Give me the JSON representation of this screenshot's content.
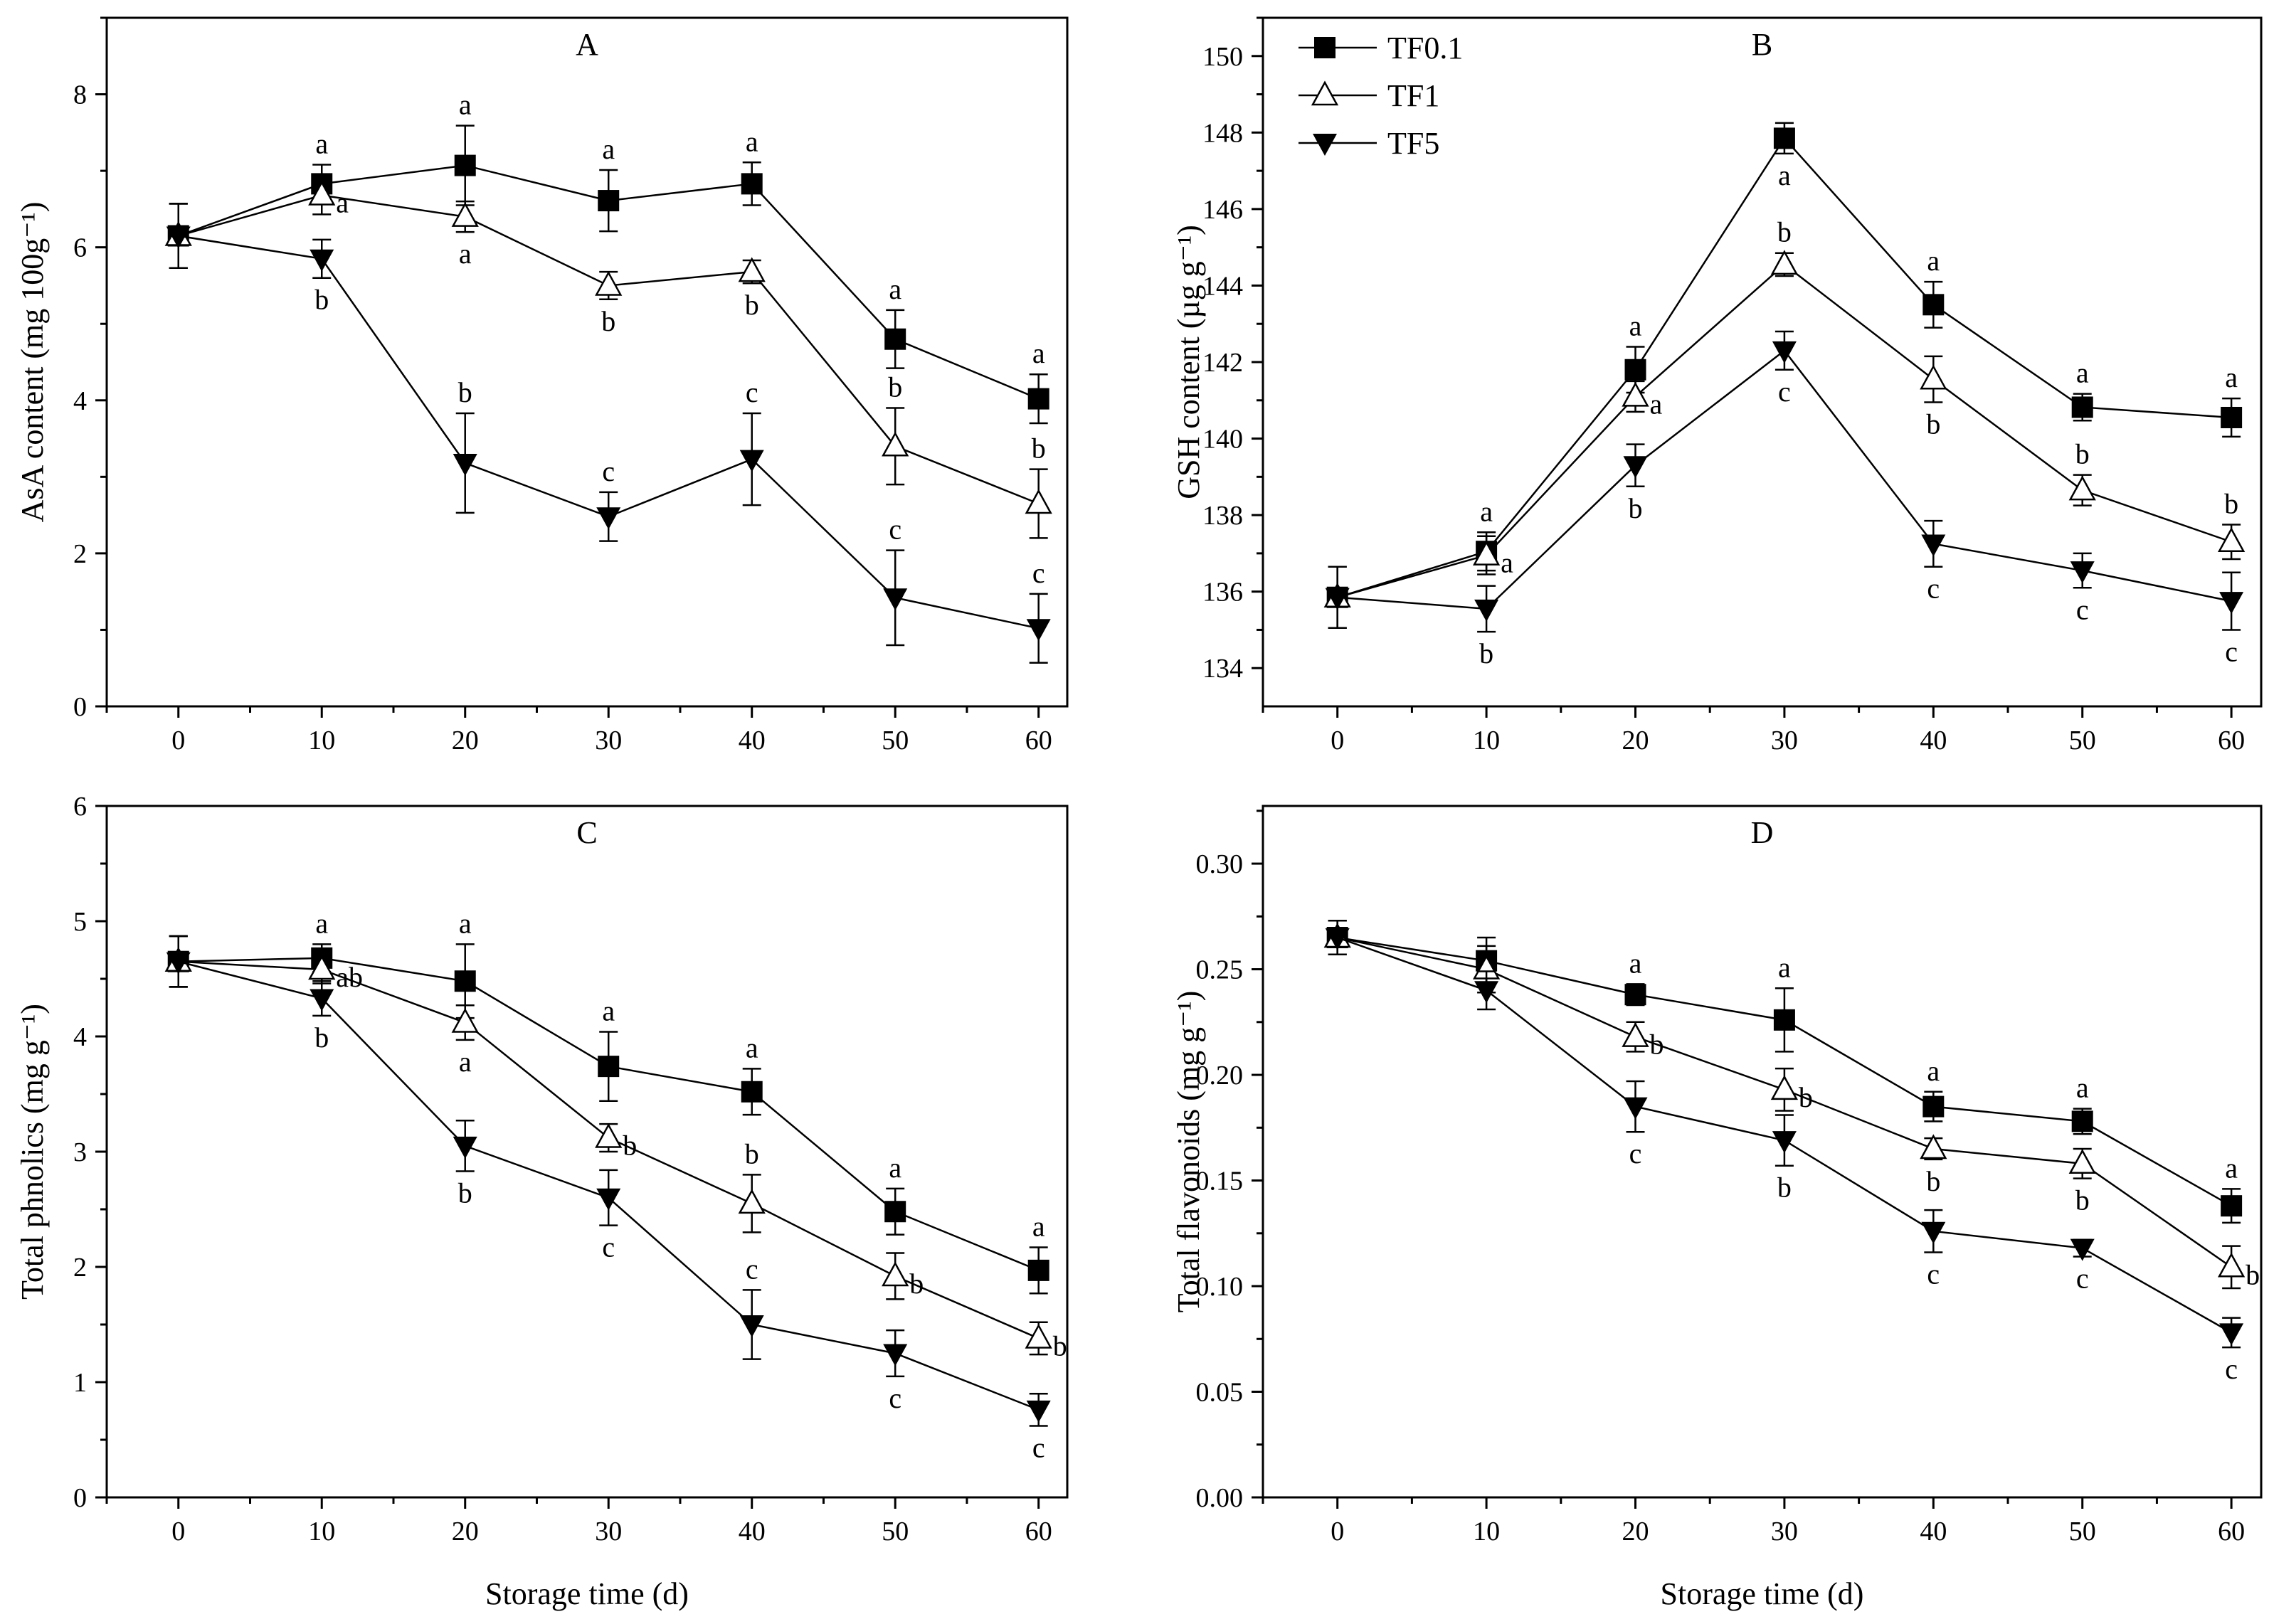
{
  "legend": [
    {
      "name": "TF0.1",
      "marker": "square"
    },
    {
      "name": "TF1",
      "marker": "triangle-up-open"
    },
    {
      "name": "TF5",
      "marker": "triangle-down"
    }
  ],
  "shared_xlabel": "Storage time (d)",
  "chart_data": [
    {
      "type": "line",
      "panel": "A",
      "title": "A",
      "xlabel": "",
      "ylabel": "AsA content (mg 100g⁻¹)",
      "x": [
        0,
        10,
        20,
        30,
        40,
        50,
        60
      ],
      "xlim": [
        -5,
        62
      ],
      "ylim": [
        0,
        9
      ],
      "xticks": [
        0,
        10,
        20,
        30,
        40,
        50,
        60
      ],
      "yticks": [
        0,
        2,
        4,
        6,
        8
      ],
      "ytick_labels": [
        "0",
        "2",
        "4",
        "6",
        "8"
      ],
      "series": [
        {
          "name": "TF0.1",
          "values": [
            6.15,
            6.83,
            7.07,
            6.61,
            6.83,
            4.8,
            4.02
          ],
          "errors": [
            0.42,
            0.25,
            0.52,
            0.4,
            0.28,
            0.38,
            0.32
          ],
          "labels": [
            "",
            "a",
            "a",
            "a",
            "a",
            "a",
            "a"
          ],
          "label_pos": [
            "above",
            "above",
            "above",
            "above",
            "above",
            "above",
            "above"
          ]
        },
        {
          "name": "TF1",
          "values": [
            6.15,
            6.68,
            6.4,
            5.5,
            5.68,
            3.4,
            2.65
          ],
          "errors": [
            0.42,
            0.25,
            0.2,
            0.18,
            0.15,
            0.5,
            0.45
          ],
          "labels": [
            "",
            "a",
            "a",
            "b",
            "b",
            "b",
            "b"
          ],
          "label_pos": [
            "below",
            "right",
            "below",
            "below",
            "below",
            "above",
            "above"
          ]
        },
        {
          "name": "TF5",
          "values": [
            6.15,
            5.85,
            3.18,
            2.48,
            3.23,
            1.42,
            1.02
          ],
          "errors": [
            0.42,
            0.25,
            0.65,
            0.32,
            0.6,
            0.62,
            0.45
          ],
          "labels": [
            "",
            "b",
            "b",
            "c",
            "c",
            "c",
            "c"
          ],
          "label_pos": [
            "below",
            "below",
            "above",
            "above",
            "above",
            "above",
            "above"
          ]
        }
      ]
    },
    {
      "type": "line",
      "panel": "B",
      "title": "B",
      "xlabel": "",
      "ylabel": "GSH content (µg g⁻¹)",
      "x": [
        0,
        10,
        20,
        30,
        40,
        50,
        60
      ],
      "xlim": [
        -5,
        62
      ],
      "ylim": [
        133,
        151
      ],
      "xticks": [
        0,
        10,
        20,
        30,
        40,
        50,
        60
      ],
      "yticks": [
        134,
        136,
        138,
        140,
        142,
        144,
        146,
        148,
        150
      ],
      "ytick_labels": [
        "134",
        "136",
        "138",
        "140",
        "142",
        "144",
        "146",
        "148",
        "150"
      ],
      "series": [
        {
          "name": "TF0.1",
          "values": [
            135.85,
            137.05,
            141.8,
            147.85,
            143.5,
            140.82,
            140.55
          ],
          "errors": [
            0.8,
            0.5,
            0.6,
            0.4,
            0.6,
            0.35,
            0.5
          ],
          "labels": [
            "",
            "a",
            "a",
            "a",
            "a",
            "a",
            "a"
          ],
          "label_pos": [
            "above",
            "above",
            "above",
            "below",
            "above",
            "above",
            "above"
          ]
        },
        {
          "name": "TF1",
          "values": [
            135.85,
            136.95,
            141.1,
            144.55,
            141.55,
            138.65,
            137.3
          ],
          "errors": [
            0.8,
            0.5,
            0.4,
            0.3,
            0.6,
            0.4,
            0.45
          ],
          "labels": [
            "",
            "a",
            "a",
            "b",
            "b",
            "b",
            "b"
          ],
          "label_pos": [
            "above",
            "right",
            "right",
            "above",
            "below",
            "above",
            "above"
          ]
        },
        {
          "name": "TF5",
          "values": [
            135.85,
            135.55,
            139.3,
            142.3,
            137.25,
            136.55,
            135.75
          ],
          "errors": [
            0.8,
            0.6,
            0.55,
            0.5,
            0.6,
            0.45,
            0.75
          ],
          "labels": [
            "",
            "b",
            "b",
            "c",
            "c",
            "c",
            "c"
          ],
          "label_pos": [
            "below",
            "below",
            "below",
            "below",
            "below",
            "below",
            "below"
          ]
        }
      ]
    },
    {
      "type": "line",
      "panel": "C",
      "title": "C",
      "xlabel": "Storage time (d)",
      "ylabel": "Total phnolics (mg g⁻¹)",
      "x": [
        0,
        10,
        20,
        30,
        40,
        50,
        60
      ],
      "xlim": [
        -5,
        62
      ],
      "ylim": [
        0,
        6
      ],
      "xticks": [
        0,
        10,
        20,
        30,
        40,
        50,
        60
      ],
      "yticks": [
        0,
        1,
        2,
        3,
        4,
        5,
        6
      ],
      "ytick_labels": [
        "0",
        "1",
        "2",
        "3",
        "4",
        "5",
        "6"
      ],
      "series": [
        {
          "name": "TF0.1",
          "values": [
            4.65,
            4.68,
            4.48,
            3.74,
            3.52,
            2.48,
            1.97
          ],
          "errors": [
            0.22,
            0.12,
            0.32,
            0.3,
            0.2,
            0.2,
            0.2
          ],
          "labels": [
            "",
            "a",
            "a",
            "a",
            "a",
            "a",
            "a"
          ],
          "label_pos": [
            "above",
            "above",
            "above",
            "above",
            "above",
            "above",
            "above"
          ]
        },
        {
          "name": "TF1",
          "values": [
            4.65,
            4.58,
            4.12,
            3.12,
            2.55,
            1.92,
            1.38
          ],
          "errors": [
            0.22,
            0.12,
            0.15,
            0.12,
            0.25,
            0.2,
            0.14
          ],
          "labels": [
            "",
            "ab",
            "a",
            "b",
            "b",
            "b",
            "b"
          ],
          "label_pos": [
            "above",
            "right",
            "below",
            "right",
            "above",
            "right",
            "right"
          ]
        },
        {
          "name": "TF5",
          "values": [
            4.65,
            4.33,
            3.05,
            2.6,
            1.5,
            1.25,
            0.76
          ],
          "errors": [
            0.22,
            0.15,
            0.22,
            0.24,
            0.3,
            0.2,
            0.14
          ],
          "labels": [
            "",
            "b",
            "b",
            "c",
            "c",
            "c",
            "c"
          ],
          "label_pos": [
            "below",
            "below",
            "below",
            "below",
            "above",
            "below",
            "below"
          ]
        }
      ]
    },
    {
      "type": "line",
      "panel": "D",
      "title": "D",
      "xlabel": "Storage time (d)",
      "ylabel": "Total flavonoids (mg g⁻¹)",
      "x": [
        0,
        10,
        20,
        30,
        40,
        50,
        60
      ],
      "xlim": [
        -5,
        62
      ],
      "ylim": [
        0,
        0.3273
      ],
      "xticks": [
        0,
        10,
        20,
        30,
        40,
        50,
        60
      ],
      "yticks": [
        0,
        0.05,
        0.1,
        0.15,
        0.2,
        0.25,
        0.3
      ],
      "ytick_labels": [
        "0.00",
        "0.05",
        "0.10",
        "0.15",
        "0.20",
        "0.25",
        "0.30"
      ],
      "series": [
        {
          "name": "TF0.1",
          "values": [
            0.265,
            0.254,
            0.238,
            0.226,
            0.185,
            0.178,
            0.138
          ],
          "errors": [
            0.008,
            0.011,
            0.005,
            0.015,
            0.007,
            0.006,
            0.008
          ],
          "labels": [
            "",
            "",
            "a",
            "a",
            "a",
            "a",
            "a"
          ],
          "label_pos": [
            "above",
            "above",
            "above",
            "above",
            "above",
            "above",
            "above"
          ]
        },
        {
          "name": "TF1",
          "values": [
            0.265,
            0.25,
            0.218,
            0.193,
            0.165,
            0.158,
            0.109
          ],
          "errors": [
            0.008,
            0.011,
            0.007,
            0.01,
            0.005,
            0.007,
            0.01
          ],
          "labels": [
            "",
            "",
            "b",
            "b",
            "b",
            "b",
            "b"
          ],
          "label_pos": [
            "above",
            "above",
            "right",
            "right",
            "below",
            "below",
            "right"
          ]
        },
        {
          "name": "TF5",
          "values": [
            0.265,
            0.24,
            0.185,
            0.169,
            0.126,
            0.118,
            0.078
          ],
          "errors": [
            0.008,
            0.009,
            0.012,
            0.012,
            0.01,
            0.004,
            0.007
          ],
          "labels": [
            "",
            "",
            "c",
            "b",
            "c",
            "c",
            "c"
          ],
          "label_pos": [
            "below",
            "below",
            "below",
            "below",
            "below",
            "below",
            "below"
          ]
        }
      ]
    }
  ]
}
